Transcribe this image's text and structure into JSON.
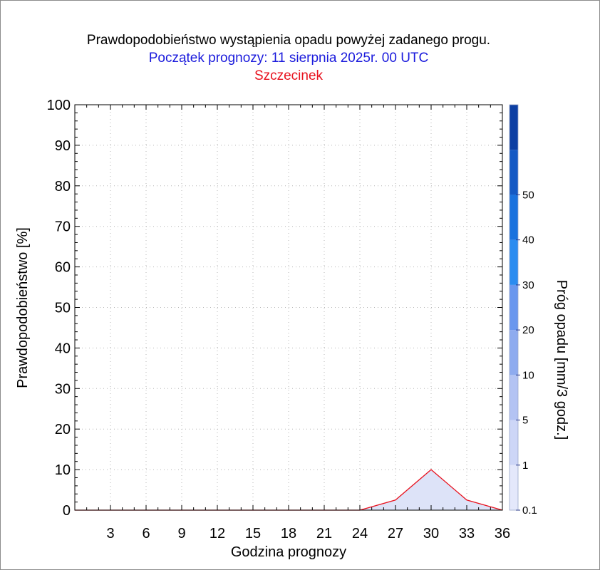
{
  "chart_data": {
    "type": "area",
    "title": "Prawdopodobieństwo wystąpienia opadu powyżej zadanego progu.",
    "subtitle": "Początek prognozy: 11 sierpnia 2025r. 00 UTC",
    "location": "Szczecinek",
    "xlabel": "Godzina prognozy",
    "ylabel": "Prawdopodobieństwo [%]",
    "xlim": [
      0,
      36
    ],
    "ylim": [
      0,
      100
    ],
    "x_ticks": [
      3,
      6,
      9,
      12,
      15,
      18,
      21,
      24,
      27,
      30,
      33,
      36
    ],
    "y_ticks": [
      0,
      10,
      20,
      30,
      40,
      50,
      60,
      70,
      80,
      90,
      100
    ],
    "grid": true,
    "series": [
      {
        "name": "0.1",
        "color": "#e8121e",
        "fill": "#dde3f8",
        "x": [
          0,
          3,
          6,
          9,
          12,
          15,
          18,
          21,
          24,
          27,
          30,
          33,
          36
        ],
        "y": [
          0,
          0,
          0,
          0,
          0,
          0,
          0,
          0,
          0,
          2.5,
          10,
          2.5,
          0
        ]
      }
    ],
    "colorbar": {
      "label": "Próg opadu [mm/3 godz.]",
      "levels": [
        {
          "value": "0.1",
          "color": "#e4e8fb"
        },
        {
          "value": "1",
          "color": "#cdd6f7"
        },
        {
          "value": "5",
          "color": "#b3c3f3"
        },
        {
          "value": "10",
          "color": "#8eabef"
        },
        {
          "value": "20",
          "color": "#6a97ee"
        },
        {
          "value": "30",
          "color": "#2b8cf0"
        },
        {
          "value": "40",
          "color": "#1a72de"
        },
        {
          "value": "50",
          "color": "#1459c4"
        },
        {
          "value": "",
          "color": "#0d3fa3"
        }
      ]
    }
  }
}
